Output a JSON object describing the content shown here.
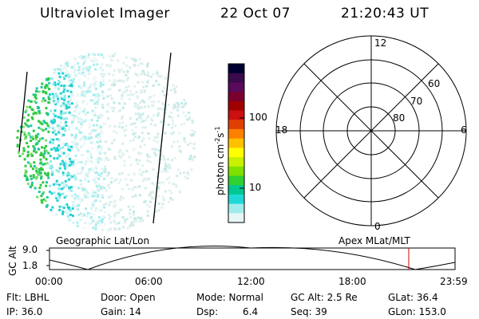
{
  "header": {
    "instrument": "Ultraviolet Imager",
    "date": "22 Oct 07",
    "time": "21:20:43 UT"
  },
  "colorbar": {
    "label_main": "photon cm",
    "label_exp1": "-2",
    "label_s": "s",
    "label_exp2": "-1",
    "ticks": [
      "100",
      "10"
    ],
    "colors": [
      "#000033",
      "#3a0a4a",
      "#5a0a5a",
      "#7a0030",
      "#a00000",
      "#cc1010",
      "#e04000",
      "#ff8000",
      "#ffc000",
      "#ffff00",
      "#c8f000",
      "#80e000",
      "#30d030",
      "#00c890",
      "#20d8d8",
      "#a0ecec",
      "#e6f6f6"
    ]
  },
  "polar_grid": {
    "labels": [
      "12",
      "6",
      "18",
      "0",
      "60",
      "70",
      "80"
    ]
  },
  "timeline": {
    "left_label": "Geographic Lat/Lon",
    "right_label": "Apex MLat/MLT",
    "y_axis_label": "GC Alt",
    "y_ticks": [
      "9.0",
      "1.8"
    ],
    "x_ticks": [
      "00:00",
      "06:00",
      "12:00",
      "18:00",
      "23:59"
    ],
    "marker_color": "#cc0000"
  },
  "status": {
    "flt": "Flt: LBHL",
    "ip": "IP: 36.0",
    "door": "Door: Open",
    "gain": "Gain: 14",
    "mode": "Mode: Normal",
    "dsp_label": "Dsp:",
    "dsp_value": "6.4",
    "gc_alt": "GC Alt: 2.5 Re",
    "seq": "Seq: 39",
    "glat": "GLat:  36.4",
    "glon": "GLon: 153.0"
  }
}
